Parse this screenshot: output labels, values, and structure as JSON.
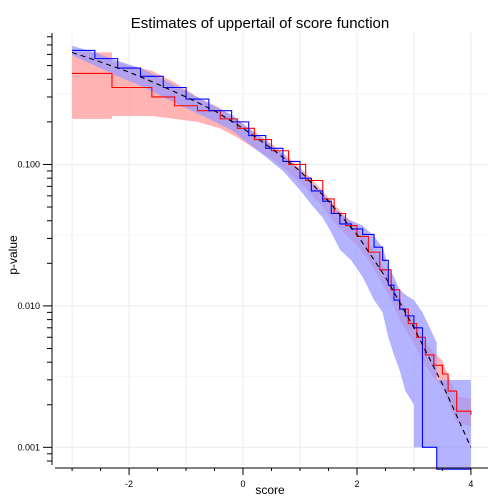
{
  "chart_data": {
    "type": "line",
    "title": "Estimates of uppertail of score function",
    "xlabel": "score",
    "ylabel": "p-value",
    "xlim": [
      -3.3,
      4.3
    ],
    "ylim": [
      0.00075,
      0.85
    ],
    "y_scale": "log",
    "x_ticks": [
      -2,
      0,
      2,
      4
    ],
    "x_tick_labels": [
      "-2",
      "0",
      "2",
      "4"
    ],
    "y_ticks": [
      0.001,
      0.01,
      0.1
    ],
    "y_tick_labels": [
      "0.001",
      "0.010",
      "0.100"
    ],
    "grid": true,
    "background": "#ffffff",
    "series": [
      {
        "color": "#ff0000",
        "band_color": "#ff9999",
        "points": [
          [
            -3.0,
            0.44
          ],
          [
            -2.3,
            0.44
          ],
          [
            -2.3,
            0.35
          ],
          [
            -1.6,
            0.35
          ],
          [
            -1.6,
            0.3
          ],
          [
            -1.2,
            0.3
          ],
          [
            -1.2,
            0.26
          ],
          [
            -0.8,
            0.24
          ],
          [
            -0.4,
            0.21
          ],
          [
            -0.1,
            0.18
          ],
          [
            0.2,
            0.15
          ],
          [
            0.5,
            0.125
          ],
          [
            0.8,
            0.1
          ],
          [
            1.1,
            0.077
          ],
          [
            1.4,
            0.057
          ],
          [
            1.6,
            0.045
          ],
          [
            1.8,
            0.037
          ],
          [
            2.0,
            0.031
          ],
          [
            2.2,
            0.024
          ],
          [
            2.4,
            0.018
          ],
          [
            2.6,
            0.013
          ],
          [
            2.75,
            0.0095
          ],
          [
            2.9,
            0.0075
          ],
          [
            3.05,
            0.006
          ],
          [
            3.2,
            0.0045
          ],
          [
            3.35,
            0.0038
          ],
          [
            3.5,
            0.0033
          ],
          [
            3.6,
            0.0025
          ],
          [
            3.75,
            0.0018
          ],
          [
            4.0,
            0.0017
          ]
        ],
        "upper": [
          [
            -3.0,
            0.62
          ],
          [
            -2.3,
            0.62
          ],
          [
            -2.3,
            0.53
          ],
          [
            -1.6,
            0.46
          ],
          [
            -1.2,
            0.38
          ],
          [
            -0.8,
            0.3
          ],
          [
            -0.4,
            0.25
          ],
          [
            -0.1,
            0.205
          ],
          [
            0.2,
            0.17
          ],
          [
            0.5,
            0.14
          ],
          [
            0.8,
            0.112
          ],
          [
            1.1,
            0.087
          ],
          [
            1.4,
            0.065
          ],
          [
            1.6,
            0.052
          ],
          [
            1.8,
            0.043
          ],
          [
            2.0,
            0.036
          ],
          [
            2.2,
            0.028
          ],
          [
            2.4,
            0.021
          ],
          [
            2.6,
            0.0155
          ],
          [
            2.75,
            0.0115
          ],
          [
            2.9,
            0.009
          ],
          [
            3.05,
            0.0072
          ],
          [
            3.2,
            0.0055
          ],
          [
            3.35,
            0.0047
          ],
          [
            3.5,
            0.0041
          ],
          [
            3.6,
            0.0032
          ],
          [
            3.75,
            0.0023
          ],
          [
            4.0,
            0.0022
          ]
        ],
        "lower": [
          [
            -3.0,
            0.21
          ],
          [
            -2.3,
            0.21
          ],
          [
            -2.3,
            0.22
          ],
          [
            -1.6,
            0.22
          ],
          [
            -1.2,
            0.21
          ],
          [
            -0.8,
            0.2
          ],
          [
            -0.4,
            0.18
          ],
          [
            -0.1,
            0.155
          ],
          [
            0.2,
            0.13
          ],
          [
            0.5,
            0.11
          ],
          [
            0.8,
            0.088
          ],
          [
            1.1,
            0.068
          ],
          [
            1.4,
            0.05
          ],
          [
            1.6,
            0.039
          ],
          [
            1.8,
            0.032
          ],
          [
            2.0,
            0.027
          ],
          [
            2.2,
            0.021
          ],
          [
            2.4,
            0.0155
          ],
          [
            2.6,
            0.011
          ],
          [
            2.75,
            0.008
          ],
          [
            2.9,
            0.0063
          ],
          [
            3.05,
            0.005
          ],
          [
            3.2,
            0.0038
          ],
          [
            3.35,
            0.0031
          ],
          [
            3.5,
            0.0027
          ],
          [
            3.6,
            0.0021
          ],
          [
            3.75,
            0.0015
          ],
          [
            4.0,
            0.0014
          ]
        ]
      },
      {
        "color": "#0000ff",
        "band_color": "#9999ff",
        "points": [
          [
            -3.0,
            0.64
          ],
          [
            -2.6,
            0.56
          ],
          [
            -2.2,
            0.48
          ],
          [
            -1.8,
            0.42
          ],
          [
            -1.4,
            0.35
          ],
          [
            -1.0,
            0.29
          ],
          [
            -0.6,
            0.24
          ],
          [
            -0.2,
            0.2
          ],
          [
            0.1,
            0.16
          ],
          [
            0.4,
            0.13
          ],
          [
            0.7,
            0.105
          ],
          [
            1.0,
            0.08
          ],
          [
            1.2,
            0.065
          ],
          [
            1.4,
            0.055
          ],
          [
            1.55,
            0.045
          ],
          [
            1.7,
            0.038
          ],
          [
            1.9,
            0.035
          ],
          [
            2.1,
            0.032
          ],
          [
            2.3,
            0.026
          ],
          [
            2.45,
            0.021
          ],
          [
            2.55,
            0.014
          ],
          [
            2.65,
            0.011
          ],
          [
            2.75,
            0.0095
          ],
          [
            2.85,
            0.0085
          ],
          [
            3.0,
            0.007
          ],
          [
            3.15,
            0.0055
          ],
          [
            3.15,
            0.001
          ],
          [
            3.4,
            0.001
          ],
          [
            3.4,
            0.0007
          ],
          [
            4.0,
            0.0007
          ]
        ],
        "upper": [
          [
            -3.0,
            0.69
          ],
          [
            -2.6,
            0.62
          ],
          [
            -2.2,
            0.54
          ],
          [
            -1.8,
            0.48
          ],
          [
            -1.4,
            0.4
          ],
          [
            -1.0,
            0.33
          ],
          [
            -0.6,
            0.27
          ],
          [
            -0.2,
            0.225
          ],
          [
            0.1,
            0.18
          ],
          [
            0.4,
            0.145
          ],
          [
            0.7,
            0.118
          ],
          [
            1.0,
            0.09
          ],
          [
            1.2,
            0.074
          ],
          [
            1.4,
            0.063
          ],
          [
            1.55,
            0.052
          ],
          [
            1.7,
            0.045
          ],
          [
            1.9,
            0.04
          ],
          [
            2.1,
            0.037
          ],
          [
            2.3,
            0.031
          ],
          [
            2.45,
            0.026
          ],
          [
            2.55,
            0.019
          ],
          [
            2.65,
            0.016
          ],
          [
            2.75,
            0.013
          ],
          [
            2.85,
            0.012
          ],
          [
            3.0,
            0.011
          ],
          [
            3.15,
            0.009
          ],
          [
            3.4,
            0.0055
          ],
          [
            3.4,
            0.003
          ],
          [
            4.0,
            0.003
          ]
        ],
        "lower": [
          [
            -3.0,
            0.59
          ],
          [
            -2.6,
            0.5
          ],
          [
            -2.2,
            0.42
          ],
          [
            -1.8,
            0.36
          ],
          [
            -1.4,
            0.3
          ],
          [
            -1.0,
            0.25
          ],
          [
            -0.6,
            0.21
          ],
          [
            -0.2,
            0.175
          ],
          [
            0.1,
            0.14
          ],
          [
            0.4,
            0.113
          ],
          [
            0.7,
            0.09
          ],
          [
            1.0,
            0.066
          ],
          [
            1.2,
            0.052
          ],
          [
            1.4,
            0.042
          ],
          [
            1.55,
            0.033
          ],
          [
            1.7,
            0.025
          ],
          [
            1.9,
            0.021
          ],
          [
            2.1,
            0.016
          ],
          [
            2.3,
            0.011
          ],
          [
            2.45,
            0.009
          ],
          [
            2.55,
            0.006
          ],
          [
            2.65,
            0.0045
          ],
          [
            2.75,
            0.0035
          ],
          [
            2.85,
            0.0025
          ],
          [
            3.0,
            0.002
          ],
          [
            3.0,
            0.001
          ],
          [
            3.4,
            0.001
          ],
          [
            3.4,
            0.0007
          ],
          [
            4.0,
            0.0007
          ]
        ]
      },
      {
        "color": "#000000",
        "dashed": true,
        "points": [
          [
            -3.0,
            0.62
          ],
          [
            -2.5,
            0.53
          ],
          [
            -2.0,
            0.45
          ],
          [
            -1.5,
            0.37
          ],
          [
            -1.0,
            0.3
          ],
          [
            -0.5,
            0.24
          ],
          [
            0.0,
            0.18
          ],
          [
            0.5,
            0.13
          ],
          [
            1.0,
            0.09
          ],
          [
            1.5,
            0.055
          ],
          [
            2.0,
            0.032
          ],
          [
            2.5,
            0.016
          ],
          [
            3.0,
            0.007
          ],
          [
            3.5,
            0.0028
          ],
          [
            4.0,
            0.001
          ]
        ]
      }
    ]
  }
}
